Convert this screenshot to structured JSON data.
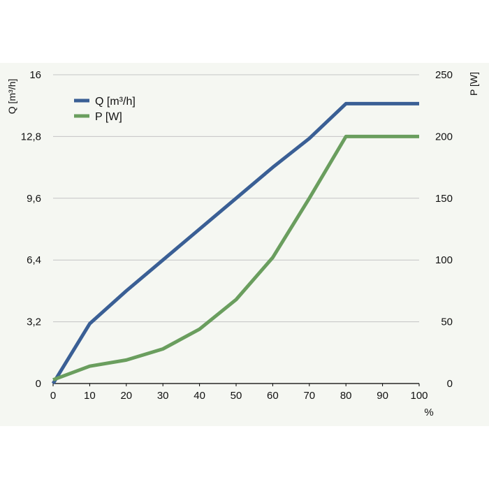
{
  "chart_data": {
    "type": "line",
    "x": [
      0,
      10,
      20,
      30,
      40,
      50,
      60,
      70,
      80,
      90,
      100
    ],
    "xlabel": "%",
    "xticks": [
      "0",
      "10",
      "20",
      "30",
      "40",
      "50",
      "60",
      "70",
      "80",
      "90",
      "100"
    ],
    "xlim": [
      0,
      100
    ],
    "ylabel_left": "Q [m³/h]",
    "ylabel_right": "P [W]",
    "yticks_left": [
      "0",
      "3,2",
      "6,4",
      "9,6",
      "12,8",
      "16"
    ],
    "yticks_right": [
      "0",
      "50",
      "100",
      "150",
      "200",
      "250"
    ],
    "ylim_left": [
      0,
      16
    ],
    "ylim_right": [
      0,
      250
    ],
    "grid": true,
    "legend_position": "top-left",
    "series": [
      {
        "name": "Q [m³/h]",
        "axis": "left",
        "color": "#3a5f95",
        "values": [
          0,
          3.1,
          4.8,
          6.4,
          8.0,
          9.6,
          11.2,
          12.7,
          14.5,
          14.5,
          14.5
        ]
      },
      {
        "name": "P [W]",
        "axis": "right",
        "color": "#6a9e5e",
        "values": [
          3,
          14,
          19,
          28,
          44,
          68,
          102,
          150,
          200,
          200,
          200
        ]
      }
    ]
  }
}
